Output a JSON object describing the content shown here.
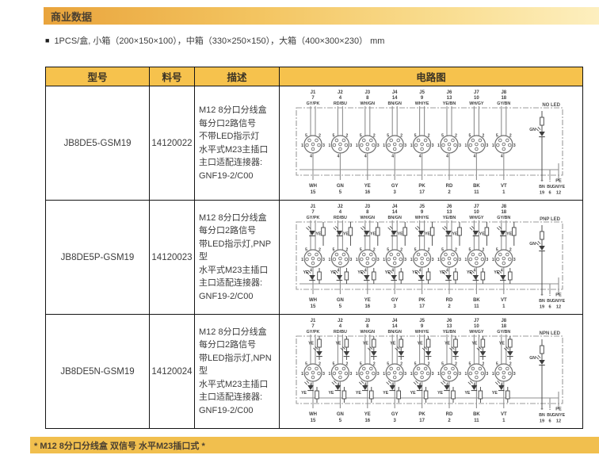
{
  "page": {
    "section_title": "商业数据",
    "bullet": "■",
    "packaging_note": "1PCS/盒, 小箱（200×150×100），中箱（330×250×150），大箱（400×300×230） mm",
    "footer_note": "* M12 8分口分线盒 双信号 水平M23插口式 *"
  },
  "colors": {
    "header_gradient_start": "#e9a43c",
    "header_gradient_end": "#fdefbf",
    "table_header_bg": "#f6c24d",
    "footer_bg": "#f1bf4e",
    "wire_gray": "#8f8f8f",
    "diagram_dark": "#3f3f3f"
  },
  "table": {
    "headers": [
      "型号",
      "料号",
      "描述",
      "电路图"
    ],
    "rows": [
      {
        "model": "JB8DE5-GSM19",
        "part_no": "14120022",
        "description": [
          "M12 8分口分线盒",
          "每分口2路信号",
          "不带LED指示灯",
          "水平式M23主插口",
          "主口适配连接器:",
          "GNF19-2/C00"
        ],
        "circuit": {
          "variant_label": "NO LED",
          "led_type": "none"
        }
      },
      {
        "model": "JB8DE5P-GSM19",
        "part_no": "14120023",
        "description": [
          "M12 8分口分线盒",
          "每分口2路信号",
          "带LED指示灯,PNP型",
          "水平式M23主插口",
          "主口适配连接器:",
          "GNF19-2/C00"
        ],
        "circuit": {
          "variant_label": "PNP LED",
          "led_type": "pnp"
        }
      },
      {
        "model": "JB8DE5N-GSM19",
        "part_no": "14120024",
        "description": [
          "M12 8分口分线盒",
          "每分口2路信号",
          "带LED指示灯,NPN型",
          "水平式M23主插口",
          "主口适配连接器:",
          "GNF19-2/C00"
        ],
        "circuit": {
          "variant_label": "NPN LED",
          "led_type": "npn"
        }
      }
    ],
    "circuit_common": {
      "top_connectors": [
        {
          "name": "J1",
          "pin": "7",
          "color": "GY/PK"
        },
        {
          "name": "J2",
          "pin": "4",
          "color": "RD/BU"
        },
        {
          "name": "J3",
          "pin": "8",
          "color": "WH/GN"
        },
        {
          "name": "J4",
          "pin": "14",
          "color": "BN/GN"
        },
        {
          "name": "J5",
          "pin": "9",
          "color": "WH/YE"
        },
        {
          "name": "J6",
          "pin": "13",
          "color": "YE/BN"
        },
        {
          "name": "J7",
          "pin": "10",
          "color": "WH/GY"
        },
        {
          "name": "J8",
          "pin": "18",
          "color": "GY/BN"
        }
      ],
      "connector_pin_labels": [
        "5",
        "2",
        "1",
        "3",
        "4"
      ],
      "bottom_pins": [
        {
          "color": "WH",
          "pin": "15"
        },
        {
          "color": "GN",
          "pin": "5"
        },
        {
          "color": "YE",
          "pin": "16"
        },
        {
          "color": "GY",
          "pin": "3"
        },
        {
          "color": "PK",
          "pin": "17"
        },
        {
          "color": "RD",
          "pin": "2"
        },
        {
          "color": "BK",
          "pin": "11"
        },
        {
          "color": "VT",
          "pin": "1"
        }
      ],
      "power": {
        "terminals": [
          "+",
          "-",
          "PE"
        ],
        "wires": [
          {
            "color": "BN",
            "pin": "19"
          },
          {
            "color": "BU",
            "pin": "6"
          },
          {
            "color": "GN/YE",
            "pin": "12"
          }
        ],
        "led_label": "GN"
      },
      "port_led_label": "YE"
    }
  }
}
